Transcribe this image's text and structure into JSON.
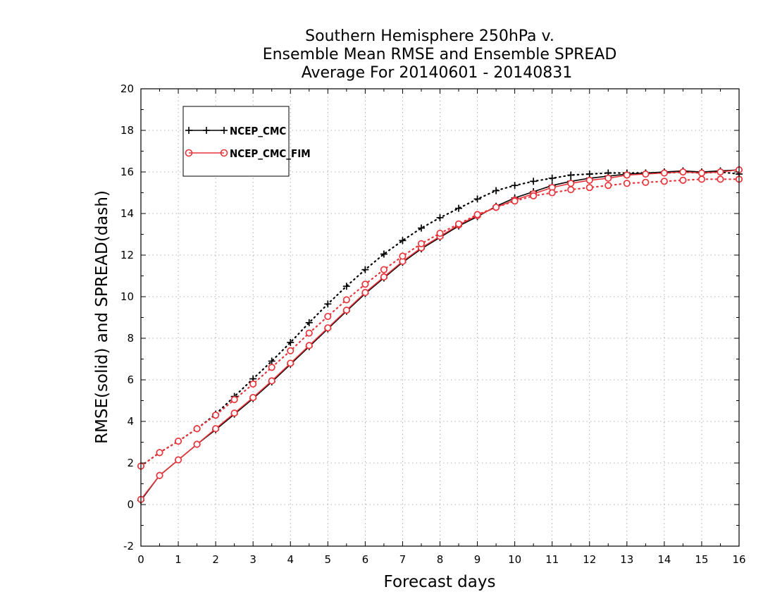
{
  "chart_data": {
    "type": "line",
    "title": [
      "Southern Hemisphere 250hPa v.",
      "Ensemble Mean RMSE and Ensemble SPREAD",
      "Average For 20140601 - 20140831"
    ],
    "xlabel": "Forecast days",
    "ylabel": "RMSE(solid) and SPREAD(dash)",
    "xlim": [
      0,
      16
    ],
    "ylim": [
      -2,
      20
    ],
    "xticks": [
      "0",
      "1",
      "2",
      "3",
      "4",
      "5",
      "6",
      "7",
      "8",
      "9",
      "10",
      "11",
      "12",
      "13",
      "14",
      "15",
      "16"
    ],
    "yticks": [
      "-2",
      "0",
      "2",
      "4",
      "6",
      "8",
      "10",
      "12",
      "14",
      "16",
      "18",
      "20"
    ],
    "grid": true,
    "legend_position": "top-left",
    "legend": [
      "NCEP_CMC",
      "NCEP_CMC_FIM"
    ],
    "x": [
      0,
      0.5,
      1,
      1.5,
      2,
      2.5,
      3,
      3.5,
      4,
      4.5,
      5,
      5.5,
      6,
      6.5,
      7,
      7.5,
      8,
      8.5,
      9,
      9.5,
      10,
      10.5,
      11,
      11.5,
      12,
      12.5,
      13,
      13.5,
      14,
      14.5,
      15,
      15.5,
      16
    ],
    "series": [
      {
        "name": "NCEP_CMC",
        "kind": "RMSE",
        "style": "solid",
        "marker": "plus",
        "color": "#000000",
        "values": [
          0.2,
          1.4,
          2.15,
          2.9,
          3.6,
          4.35,
          5.1,
          5.9,
          6.75,
          7.6,
          8.45,
          9.3,
          10.15,
          10.9,
          11.65,
          12.3,
          12.85,
          13.4,
          13.85,
          14.35,
          14.75,
          15.05,
          15.35,
          15.55,
          15.7,
          15.8,
          15.9,
          15.95,
          16.0,
          16.05,
          16.0,
          16.05,
          16.1
        ]
      },
      {
        "name": "NCEP_CMC",
        "kind": "SPREAD",
        "style": "dotted",
        "marker": "plus",
        "color": "#000000",
        "values": [
          1.85,
          2.5,
          3.05,
          3.65,
          4.35,
          5.2,
          6.05,
          6.9,
          7.8,
          8.75,
          9.65,
          10.5,
          11.3,
          12.05,
          12.7,
          13.3,
          13.8,
          14.25,
          14.7,
          15.1,
          15.35,
          15.55,
          15.7,
          15.85,
          15.9,
          15.95,
          15.95,
          15.95,
          15.95,
          16.0,
          15.95,
          16.0,
          15.9
        ]
      },
      {
        "name": "NCEP_CMC_FIM",
        "kind": "RMSE",
        "style": "solid",
        "marker": "circle",
        "color": "#e8353b",
        "values": [
          0.25,
          1.4,
          2.15,
          2.9,
          3.65,
          4.4,
          5.15,
          5.95,
          6.8,
          7.65,
          8.5,
          9.35,
          10.2,
          10.95,
          11.7,
          12.35,
          12.9,
          13.45,
          13.9,
          14.3,
          14.65,
          14.95,
          15.25,
          15.45,
          15.6,
          15.7,
          15.85,
          15.9,
          15.95,
          16.0,
          15.95,
          16.0,
          16.1
        ]
      },
      {
        "name": "NCEP_CMC_FIM",
        "kind": "SPREAD",
        "style": "dotted",
        "marker": "circle",
        "color": "#e8353b",
        "values": [
          1.85,
          2.5,
          3.05,
          3.65,
          4.3,
          5.05,
          5.8,
          6.6,
          7.4,
          8.25,
          9.05,
          9.85,
          10.6,
          11.3,
          11.95,
          12.55,
          13.05,
          13.5,
          13.95,
          14.3,
          14.6,
          14.85,
          15.0,
          15.15,
          15.25,
          15.35,
          15.45,
          15.5,
          15.55,
          15.6,
          15.65,
          15.65,
          15.65
        ]
      }
    ]
  }
}
